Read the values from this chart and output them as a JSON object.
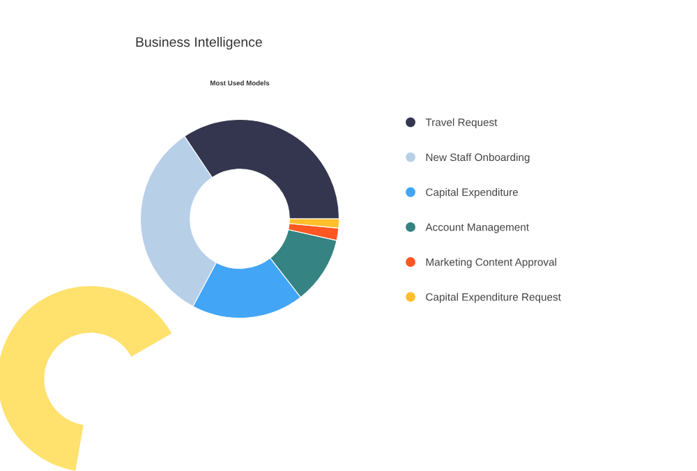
{
  "chart_data": {
    "type": "donut",
    "title": "Business Intelligence",
    "subtitle": "Most Used Models",
    "categories": [
      "Travel Request",
      "New Staff Onboarding",
      "Capital Expenditure",
      "Account Management",
      "Marketing Content Approval",
      "Capital Expenditure Request"
    ],
    "values": [
      34.4,
      32.8,
      18.3,
      11.0,
      2.0,
      1.5
    ],
    "colors": [
      "#343650",
      "#b8cfe8",
      "#42a5f5",
      "#358383",
      "#ff5722",
      "#ffc02c"
    ],
    "legend": "right"
  }
}
